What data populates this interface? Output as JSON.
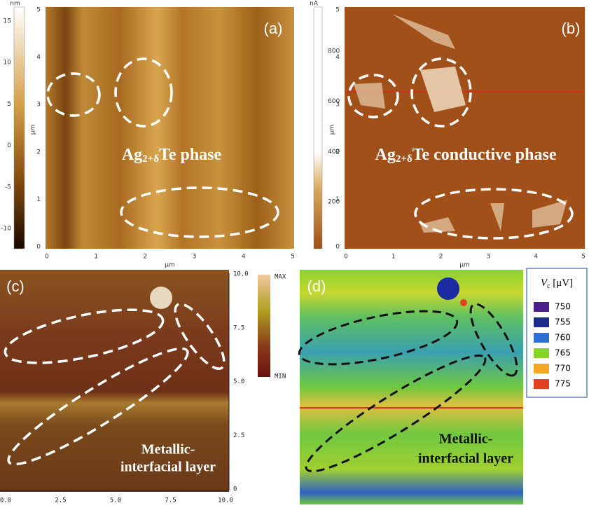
{
  "panels": [
    {
      "label": "(a)",
      "annotation": {
        "base": "Ag",
        "sub": "2+δ",
        "rest": "Te phase"
      },
      "x_axis": {
        "label": "μm",
        "ticks": [
          "0",
          "1",
          "2",
          "3",
          "4",
          "5"
        ]
      },
      "y_axis": {
        "label": "μm",
        "ticks": [
          "0",
          "1",
          "2",
          "3",
          "4",
          "5"
        ]
      },
      "colorbar": {
        "unit": "nm",
        "ticks": [
          "-10",
          "-5",
          "0",
          "5",
          "10",
          "15"
        ]
      }
    },
    {
      "label": "(b)",
      "annotation": {
        "base": "Ag",
        "sub": "2+δ",
        "rest": "Te conductive phase"
      },
      "x_axis": {
        "label": "μm",
        "ticks": [
          "0",
          "1",
          "2",
          "3",
          "4",
          "5"
        ]
      },
      "y_axis": {
        "label": "μm",
        "ticks": [
          "0",
          "1",
          "2",
          "3",
          "4",
          "5"
        ]
      },
      "colorbar": {
        "unit": "nA",
        "ticks": [
          "200",
          "400",
          "600",
          "800"
        ]
      }
    },
    {
      "label": "(c)",
      "annotation": {
        "line1": "Metallic-",
        "line2": "interfacial layer"
      },
      "x_axis": {
        "ticks": [
          "0.0",
          "2.5",
          "5.0",
          "7.5",
          "10.0"
        ]
      },
      "y_axis": {
        "ticks": [
          "0",
          "2.5",
          "5.0",
          "7.5",
          "10.0"
        ]
      },
      "colorbar": {
        "max": "MAX",
        "min": "MIN"
      }
    },
    {
      "label": "(d)",
      "annotation": {
        "line1": "Metallic-",
        "line2": "interfacial layer"
      },
      "legend": {
        "title": {
          "base": "V",
          "sub": "c",
          "rest": " [μV]"
        },
        "items": [
          {
            "label": "750",
            "color": "#4b1e8c"
          },
          {
            "label": "755",
            "color": "#1c2a8e"
          },
          {
            "label": "760",
            "color": "#2f6fd4"
          },
          {
            "label": "765",
            "color": "#86d42a"
          },
          {
            "label": "770",
            "color": "#f5a623"
          },
          {
            "label": "775",
            "color": "#e2401e"
          }
        ]
      }
    }
  ]
}
